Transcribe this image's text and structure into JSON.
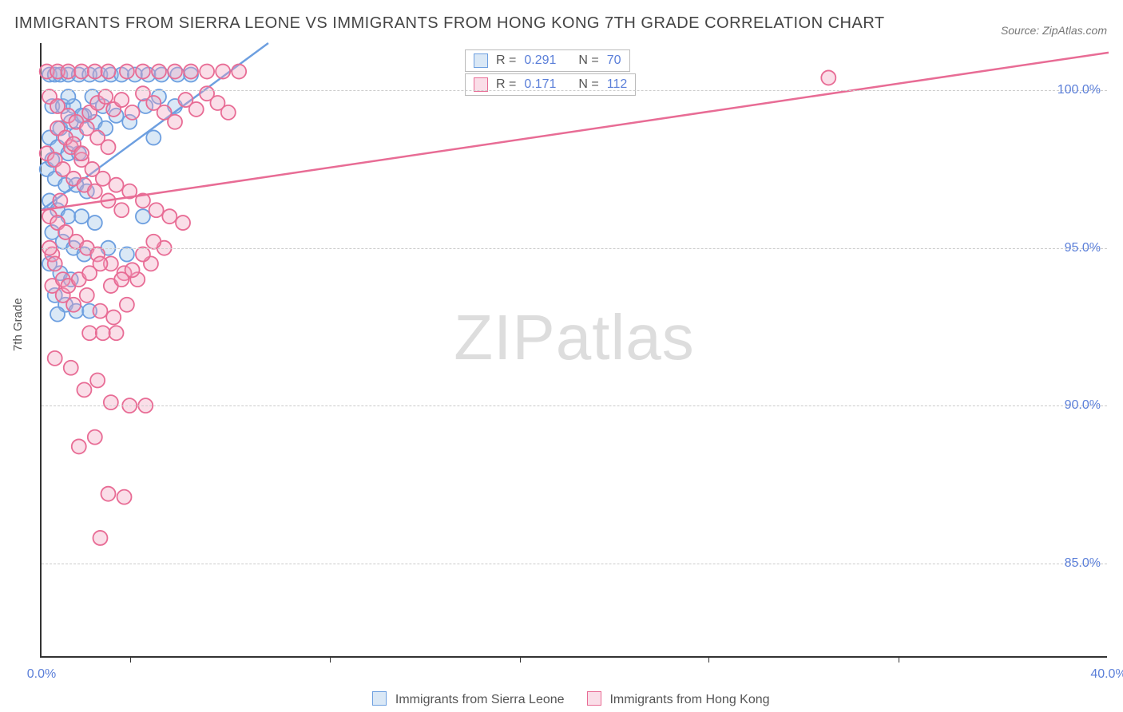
{
  "title": "IMMIGRANTS FROM SIERRA LEONE VS IMMIGRANTS FROM HONG KONG 7TH GRADE CORRELATION CHART",
  "source": "Source: ZipAtlas.com",
  "ylabel": "7th Grade",
  "watermark_bold": "ZIP",
  "watermark_thin": "atlas",
  "chart": {
    "type": "scatter",
    "xlim": [
      0,
      40
    ],
    "ylim": [
      82,
      101.5
    ],
    "xtick_positions_pct": [
      8.3,
      27.0,
      44.8,
      62.5,
      80.3
    ],
    "xtick_labels": [
      "0.0%",
      "40.0%"
    ],
    "ytick_positions": [
      85,
      90,
      95,
      100
    ],
    "ytick_labels": [
      "85.0%",
      "90.0%",
      "95.0%",
      "100.0%"
    ],
    "background_color": "#ffffff",
    "grid_color": "#cccccc",
    "axis_color": "#333333",
    "label_color": "#5b7fd9",
    "marker_radius": 9,
    "marker_stroke_width": 1.8,
    "line_width": 2.5,
    "series": [
      {
        "name": "Immigrants from Sierra Leone",
        "color_stroke": "#6d9fe0",
        "color_fill": "rgba(150,190,230,0.35)",
        "R": "0.291",
        "N": "70",
        "trend_start": [
          0,
          96.2
        ],
        "trend_end": [
          8.5,
          101.5
        ],
        "points": [
          [
            0.3,
            100.5
          ],
          [
            0.5,
            100.5
          ],
          [
            0.7,
            100.5
          ],
          [
            1.0,
            100.5
          ],
          [
            1.4,
            100.5
          ],
          [
            1.8,
            100.5
          ],
          [
            2.2,
            100.5
          ],
          [
            2.6,
            100.5
          ],
          [
            3.0,
            100.5
          ],
          [
            3.5,
            100.5
          ],
          [
            4.0,
            100.5
          ],
          [
            4.5,
            100.5
          ],
          [
            5.1,
            100.5
          ],
          [
            5.6,
            100.5
          ],
          [
            0.4,
            99.5
          ],
          [
            0.8,
            99.5
          ],
          [
            1.2,
            99.5
          ],
          [
            1.6,
            99.2
          ],
          [
            2.0,
            99.0
          ],
          [
            2.4,
            98.8
          ],
          [
            0.3,
            98.5
          ],
          [
            0.6,
            98.2
          ],
          [
            1.0,
            98.0
          ],
          [
            1.4,
            98.0
          ],
          [
            0.2,
            97.5
          ],
          [
            0.5,
            97.2
          ],
          [
            0.9,
            97.0
          ],
          [
            1.3,
            97.0
          ],
          [
            1.7,
            96.8
          ],
          [
            0.3,
            96.5
          ],
          [
            0.6,
            96.2
          ],
          [
            1.0,
            96.0
          ],
          [
            1.5,
            96.0
          ],
          [
            2.0,
            95.8
          ],
          [
            0.4,
            95.5
          ],
          [
            0.8,
            95.2
          ],
          [
            1.2,
            95.0
          ],
          [
            1.6,
            94.8
          ],
          [
            0.3,
            94.5
          ],
          [
            0.7,
            94.2
          ],
          [
            1.1,
            94.0
          ],
          [
            0.5,
            93.5
          ],
          [
            0.9,
            93.2
          ],
          [
            1.3,
            93.0
          ],
          [
            1.8,
            93.0
          ],
          [
            2.5,
            95.0
          ],
          [
            3.2,
            94.8
          ],
          [
            3.8,
            96.0
          ],
          [
            4.2,
            98.5
          ],
          [
            0.4,
            97.8
          ],
          [
            0.7,
            98.8
          ],
          [
            1.1,
            99.0
          ],
          [
            1.5,
            99.2
          ],
          [
            1.9,
            99.8
          ],
          [
            2.3,
            99.5
          ],
          [
            2.8,
            99.2
          ],
          [
            3.3,
            99.0
          ],
          [
            3.9,
            99.5
          ],
          [
            4.4,
            99.8
          ],
          [
            5.0,
            99.5
          ],
          [
            0.6,
            92.9
          ],
          [
            1.0,
            99.8
          ],
          [
            1.3,
            98.6
          ]
        ]
      },
      {
        "name": "Immigrants from Hong Kong",
        "color_stroke": "#e86c95",
        "color_fill": "rgba(240,160,190,0.35)",
        "R": "0.171",
        "N": "112",
        "trend_start": [
          0,
          96.2
        ],
        "trend_end": [
          40,
          101.2
        ],
        "points": [
          [
            0.2,
            100.6
          ],
          [
            0.6,
            100.6
          ],
          [
            1.0,
            100.6
          ],
          [
            1.5,
            100.6
          ],
          [
            2.0,
            100.6
          ],
          [
            2.5,
            100.6
          ],
          [
            3.2,
            100.6
          ],
          [
            3.8,
            100.6
          ],
          [
            4.4,
            100.6
          ],
          [
            5.0,
            100.6
          ],
          [
            5.6,
            100.6
          ],
          [
            6.2,
            100.6
          ],
          [
            6.8,
            100.6
          ],
          [
            7.4,
            100.6
          ],
          [
            29.5,
            100.4
          ],
          [
            0.3,
            99.8
          ],
          [
            0.6,
            99.5
          ],
          [
            1.0,
            99.2
          ],
          [
            1.3,
            99.0
          ],
          [
            1.7,
            98.8
          ],
          [
            2.1,
            98.5
          ],
          [
            2.5,
            98.2
          ],
          [
            0.2,
            98.0
          ],
          [
            0.5,
            97.8
          ],
          [
            0.8,
            97.5
          ],
          [
            1.2,
            97.2
          ],
          [
            1.6,
            97.0
          ],
          [
            2.0,
            96.8
          ],
          [
            2.5,
            96.5
          ],
          [
            3.0,
            96.2
          ],
          [
            0.3,
            96.0
          ],
          [
            0.6,
            95.8
          ],
          [
            0.9,
            95.5
          ],
          [
            1.3,
            95.2
          ],
          [
            1.7,
            95.0
          ],
          [
            2.1,
            94.8
          ],
          [
            2.6,
            94.5
          ],
          [
            3.1,
            94.2
          ],
          [
            3.6,
            94.0
          ],
          [
            4.1,
            94.5
          ],
          [
            4.6,
            95.0
          ],
          [
            0.4,
            93.8
          ],
          [
            0.8,
            93.5
          ],
          [
            1.2,
            93.2
          ],
          [
            1.7,
            93.5
          ],
          [
            2.2,
            93.0
          ],
          [
            2.7,
            92.8
          ],
          [
            3.2,
            93.2
          ],
          [
            1.8,
            92.3
          ],
          [
            2.3,
            92.3
          ],
          [
            2.8,
            92.3
          ],
          [
            0.5,
            91.5
          ],
          [
            1.1,
            91.2
          ],
          [
            1.6,
            90.5
          ],
          [
            2.1,
            90.8
          ],
          [
            2.6,
            90.1
          ],
          [
            3.3,
            90.0
          ],
          [
            3.9,
            90.0
          ],
          [
            2.0,
            89.0
          ],
          [
            1.4,
            88.7
          ],
          [
            2.5,
            87.2
          ],
          [
            3.1,
            87.1
          ],
          [
            2.2,
            85.8
          ],
          [
            0.4,
            94.8
          ],
          [
            0.7,
            96.5
          ],
          [
            1.1,
            98.2
          ],
          [
            1.5,
            97.8
          ],
          [
            1.9,
            97.5
          ],
          [
            2.3,
            97.2
          ],
          [
            2.8,
            97.0
          ],
          [
            3.3,
            96.8
          ],
          [
            3.8,
            96.5
          ],
          [
            4.3,
            96.2
          ],
          [
            4.8,
            96.0
          ],
          [
            5.3,
            95.8
          ],
          [
            0.3,
            95.0
          ],
          [
            0.5,
            94.5
          ],
          [
            0.8,
            94.0
          ],
          [
            1.0,
            93.8
          ],
          [
            1.4,
            94.0
          ],
          [
            1.8,
            94.2
          ],
          [
            2.2,
            94.5
          ],
          [
            2.6,
            93.8
          ],
          [
            3.0,
            94.0
          ],
          [
            3.4,
            94.3
          ],
          [
            3.8,
            94.8
          ],
          [
            4.2,
            95.2
          ],
          [
            0.6,
            98.8
          ],
          [
            0.9,
            98.5
          ],
          [
            1.2,
            98.3
          ],
          [
            1.5,
            98.0
          ],
          [
            1.8,
            99.3
          ],
          [
            2.1,
            99.6
          ],
          [
            2.4,
            99.8
          ],
          [
            2.7,
            99.4
          ],
          [
            3.0,
            99.7
          ],
          [
            3.4,
            99.3
          ],
          [
            3.8,
            99.9
          ],
          [
            4.2,
            99.6
          ],
          [
            4.6,
            99.3
          ],
          [
            5.0,
            99.0
          ],
          [
            5.4,
            99.7
          ],
          [
            5.8,
            99.4
          ],
          [
            6.2,
            99.9
          ],
          [
            6.6,
            99.6
          ],
          [
            7.0,
            99.3
          ]
        ]
      }
    ]
  },
  "legend_series_1": "Immigrants from Sierra Leone",
  "legend_series_2": "Immigrants from Hong Kong",
  "stat_labels": {
    "R": "R =",
    "N": "N ="
  }
}
